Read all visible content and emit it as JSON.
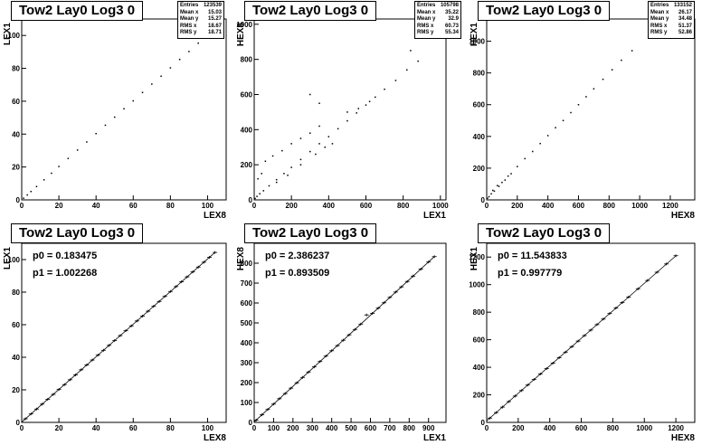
{
  "stat_labels": [
    "Entries",
    "Mean x",
    "Mean y",
    "RMS x",
    "RMS y"
  ],
  "chart_data": [
    {
      "type": "scatter",
      "title": "Tow2 Lay0 Log3 0",
      "xlabel": "LEX8",
      "ylabel": "LEX1",
      "xlim": [
        0,
        110
      ],
      "ylim": [
        0,
        110
      ],
      "xticks": [
        0,
        20,
        40,
        60,
        80,
        100
      ],
      "yticks": [
        0,
        20,
        40,
        60,
        80,
        100
      ],
      "stats": [
        "123539",
        "15.03",
        "15.27",
        "18.67",
        "18.71"
      ],
      "points": [
        [
          1,
          1
        ],
        [
          3,
          3
        ],
        [
          5,
          5.1
        ],
        [
          8,
          8.1
        ],
        [
          12,
          12.2
        ],
        [
          16,
          16.2
        ],
        [
          20,
          20.3
        ],
        [
          25,
          25.2
        ],
        [
          30,
          30.3
        ],
        [
          35,
          35.2
        ],
        [
          40,
          40.3
        ],
        [
          45,
          45.4
        ],
        [
          50,
          50.3
        ],
        [
          55,
          55.4
        ],
        [
          60,
          60.2
        ],
        [
          65,
          65.3
        ],
        [
          70,
          70.4
        ],
        [
          75,
          75.2
        ],
        [
          80,
          80.3
        ],
        [
          85,
          85.4
        ],
        [
          90,
          90.2
        ],
        [
          95,
          95.3
        ],
        [
          100,
          100.2
        ],
        [
          104,
          104.3
        ]
      ]
    },
    {
      "type": "scatter",
      "title": "Tow2 Lay0 Log3 0",
      "xlabel": "LEX1",
      "ylabel": "HEX8",
      "xlim": [
        0,
        1030
      ],
      "ylim": [
        0,
        1030
      ],
      "xticks": [
        0,
        200,
        400,
        600,
        800,
        1000
      ],
      "yticks": [
        0,
        200,
        400,
        600,
        800,
        1000
      ],
      "stats": [
        "105798",
        "35.22",
        "32.9",
        "60.73",
        "55.34"
      ],
      "points": [
        [
          5,
          8
        ],
        [
          15,
          20
        ],
        [
          30,
          35
        ],
        [
          50,
          52
        ],
        [
          80,
          80
        ],
        [
          120,
          115
        ],
        [
          160,
          150
        ],
        [
          200,
          185
        ],
        [
          250,
          230
        ],
        [
          300,
          275
        ],
        [
          350,
          320
        ],
        [
          400,
          360
        ],
        [
          450,
          405
        ],
        [
          500,
          450
        ],
        [
          550,
          495
        ],
        [
          600,
          540
        ],
        [
          650,
          585
        ],
        [
          700,
          630
        ],
        [
          760,
          680
        ],
        [
          820,
          740
        ],
        [
          880,
          790
        ],
        [
          40,
          150
        ],
        [
          60,
          220
        ],
        [
          100,
          250
        ],
        [
          20,
          120
        ],
        [
          150,
          280
        ],
        [
          200,
          320
        ],
        [
          250,
          350
        ],
        [
          300,
          380
        ],
        [
          350,
          420
        ],
        [
          120,
          100
        ],
        [
          180,
          140
        ],
        [
          250,
          200
        ],
        [
          330,
          260
        ],
        [
          380,
          300
        ],
        [
          420,
          320
        ],
        [
          500,
          500
        ],
        [
          560,
          520
        ],
        [
          620,
          560
        ],
        [
          300,
          600
        ],
        [
          350,
          550
        ],
        [
          840,
          850
        ]
      ]
    },
    {
      "type": "scatter",
      "title": "Tow2 Lay0 Log3 0",
      "xlabel": "HEX8",
      "ylabel": "HEX1",
      "xlim": [
        0,
        1360
      ],
      "ylim": [
        0,
        1140
      ],
      "xticks": [
        0,
        200,
        400,
        600,
        800,
        1000,
        1200
      ],
      "yticks": [
        0,
        200,
        400,
        600,
        800,
        1000
      ],
      "stats": [
        "133152",
        "26.17",
        "34.48",
        "51.37",
        "52.86"
      ],
      "points": [
        [
          5,
          10
        ],
        [
          15,
          20
        ],
        [
          30,
          38
        ],
        [
          50,
          55
        ],
        [
          80,
          85
        ],
        [
          120,
          125
        ],
        [
          160,
          165
        ],
        [
          200,
          210
        ],
        [
          250,
          260
        ],
        [
          300,
          305
        ],
        [
          350,
          355
        ],
        [
          400,
          405
        ],
        [
          450,
          455
        ],
        [
          500,
          500
        ],
        [
          550,
          550
        ],
        [
          600,
          600
        ],
        [
          650,
          650
        ],
        [
          700,
          700
        ],
        [
          760,
          760
        ],
        [
          820,
          820
        ],
        [
          880,
          880
        ],
        [
          950,
          940
        ],
        [
          40,
          60
        ],
        [
          70,
          90
        ],
        [
          100,
          110
        ],
        [
          140,
          150
        ]
      ]
    },
    {
      "type": "line",
      "title": "Tow2 Lay0 Log3 0",
      "xlabel": "LEX8",
      "ylabel": "LEX1",
      "xlim": [
        0,
        110
      ],
      "ylim": [
        0,
        110
      ],
      "xticks": [
        0,
        20,
        40,
        60,
        80,
        100
      ],
      "yticks": [
        0,
        20,
        40,
        60,
        80,
        100
      ],
      "fit": {
        "p0": "p0 = 0.183475",
        "p1": "p1 = 1.002268",
        "p0_value": 0.183475,
        "p1_value": 1.002268
      },
      "points": [
        [
          2,
          2.2
        ],
        [
          5,
          5.2
        ],
        [
          8,
          8.2
        ],
        [
          11,
          11.2
        ],
        [
          14,
          14.2
        ],
        [
          17,
          17.2
        ],
        [
          20,
          20.2
        ],
        [
          23,
          23.2
        ],
        [
          26,
          26.2
        ],
        [
          29,
          29.2
        ],
        [
          32,
          32.3
        ],
        [
          35,
          35.3
        ],
        [
          38,
          38.3
        ],
        [
          41,
          41.3
        ],
        [
          44,
          44.3
        ],
        [
          47,
          47.3
        ],
        [
          50,
          50.3
        ],
        [
          53,
          53.3
        ],
        [
          56,
          56.3
        ],
        [
          59,
          59.3
        ],
        [
          62,
          62.3
        ],
        [
          65,
          65.3
        ],
        [
          68,
          68.3
        ],
        [
          71,
          71.3
        ],
        [
          74,
          74.3
        ],
        [
          77,
          77.4
        ],
        [
          80,
          80.4
        ],
        [
          83,
          83.4
        ],
        [
          86,
          86.4
        ],
        [
          89,
          89.4
        ],
        [
          92,
          92.4
        ],
        [
          95,
          95.4
        ],
        [
          98,
          98.4
        ],
        [
          101,
          101.4
        ],
        [
          104,
          104.4
        ]
      ]
    },
    {
      "type": "line",
      "title": "Tow2 Lay0 Log3 0",
      "xlabel": "LEX1",
      "ylabel": "HEX8",
      "xlim": [
        0,
        990
      ],
      "ylim": [
        0,
        900
      ],
      "xticks": [
        0,
        100,
        200,
        300,
        400,
        500,
        600,
        700,
        800,
        900
      ],
      "yticks": [
        0,
        100,
        200,
        300,
        400,
        500,
        600,
        700,
        800
      ],
      "fit": {
        "p0": "p0 = 2.386237",
        "p1": "p1 = 0.893509",
        "p0_value": 2.386237,
        "p1_value": 0.893509
      },
      "points": [
        [
          10,
          11
        ],
        [
          40,
          38
        ],
        [
          70,
          65
        ],
        [
          100,
          92
        ],
        [
          130,
          119
        ],
        [
          160,
          145
        ],
        [
          190,
          172
        ],
        [
          220,
          199
        ],
        [
          250,
          226
        ],
        [
          280,
          253
        ],
        [
          310,
          279
        ],
        [
          340,
          306
        ],
        [
          370,
          333
        ],
        [
          400,
          360
        ],
        [
          430,
          386
        ],
        [
          460,
          413
        ],
        [
          490,
          440
        ],
        [
          520,
          467
        ],
        [
          550,
          494
        ],
        [
          580,
          540
        ],
        [
          610,
          548
        ],
        [
          640,
          574
        ],
        [
          670,
          601
        ],
        [
          700,
          628
        ],
        [
          730,
          655
        ],
        [
          760,
          681
        ],
        [
          790,
          708
        ],
        [
          820,
          735
        ],
        [
          860,
          770
        ],
        [
          900,
          806
        ],
        [
          930,
          833
        ]
      ]
    },
    {
      "type": "line",
      "title": "Tow2 Lay0 Log3 0",
      "xlabel": "HEX8",
      "ylabel": "HEX1",
      "xlim": [
        0,
        1320
      ],
      "ylim": [
        0,
        1300
      ],
      "xticks": [
        0,
        200,
        400,
        600,
        800,
        1000,
        1200
      ],
      "yticks": [
        0,
        200,
        400,
        600,
        800,
        1000,
        1200
      ],
      "fit": {
        "p0": "p0 = 11.543833",
        "p1": "p1 = 0.997779",
        "p0_value": 11.543833,
        "p1_value": 0.997779
      },
      "points": [
        [
          20,
          31
        ],
        [
          60,
          71
        ],
        [
          100,
          111
        ],
        [
          140,
          151
        ],
        [
          180,
          191
        ],
        [
          220,
          231
        ],
        [
          260,
          271
        ],
        [
          300,
          311
        ],
        [
          340,
          351
        ],
        [
          380,
          390
        ],
        [
          420,
          430
        ],
        [
          460,
          470
        ],
        [
          500,
          510
        ],
        [
          540,
          550
        ],
        [
          580,
          590
        ],
        [
          620,
          630
        ],
        [
          660,
          670
        ],
        [
          700,
          710
        ],
        [
          740,
          750
        ],
        [
          780,
          790
        ],
        [
          820,
          830
        ],
        [
          860,
          870
        ],
        [
          900,
          910
        ],
        [
          960,
          970
        ],
        [
          1020,
          1030
        ],
        [
          1080,
          1090
        ],
        [
          1140,
          1150
        ],
        [
          1200,
          1210
        ]
      ]
    }
  ]
}
